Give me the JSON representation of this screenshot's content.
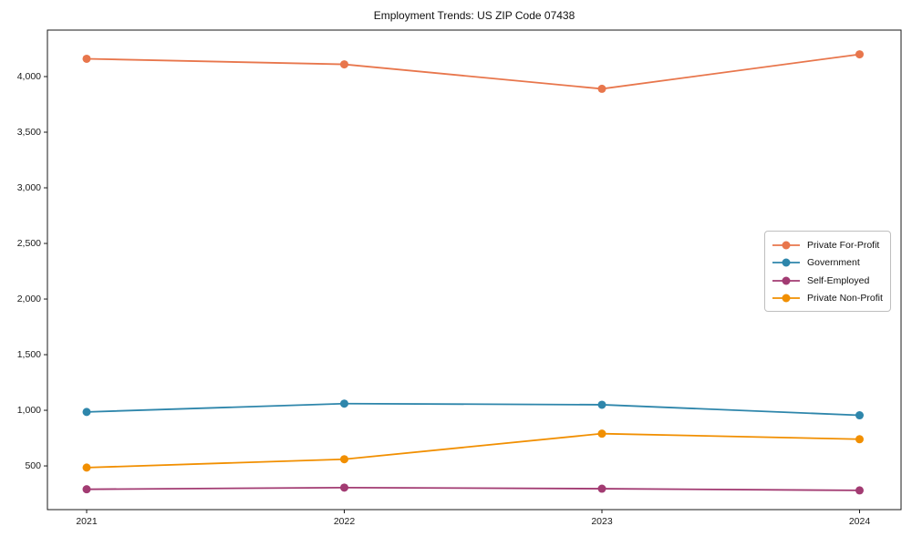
{
  "chart_data": {
    "type": "line",
    "title": "Employment Trends: US ZIP Code 07438",
    "x": [
      2021,
      2022,
      2023,
      2024
    ],
    "x_labels": [
      "2021",
      "2022",
      "2023",
      "2024"
    ],
    "series": [
      {
        "name": "Private For-Profit",
        "color": "#e8764c",
        "values": [
          4160,
          4110,
          3890,
          4200
        ]
      },
      {
        "name": "Government",
        "color": "#2e86ab",
        "values": [
          985,
          1060,
          1050,
          955
        ]
      },
      {
        "name": "Self-Employed",
        "color": "#a23b72",
        "values": [
          290,
          305,
          295,
          280
        ]
      },
      {
        "name": "Private Non-Profit",
        "color": "#f18f01",
        "values": [
          485,
          560,
          790,
          740
        ]
      }
    ],
    "yticks": [
      500,
      1000,
      1500,
      2000,
      2500,
      3000,
      3500,
      4000
    ],
    "ytick_labels": [
      "500",
      "1,000",
      "1,500",
      "2,000",
      "2,500",
      "3,000",
      "3,500",
      "4,000"
    ],
    "ylim": [
      107,
      4418
    ],
    "grid": false,
    "legend_position": "right",
    "marker": "circle"
  }
}
